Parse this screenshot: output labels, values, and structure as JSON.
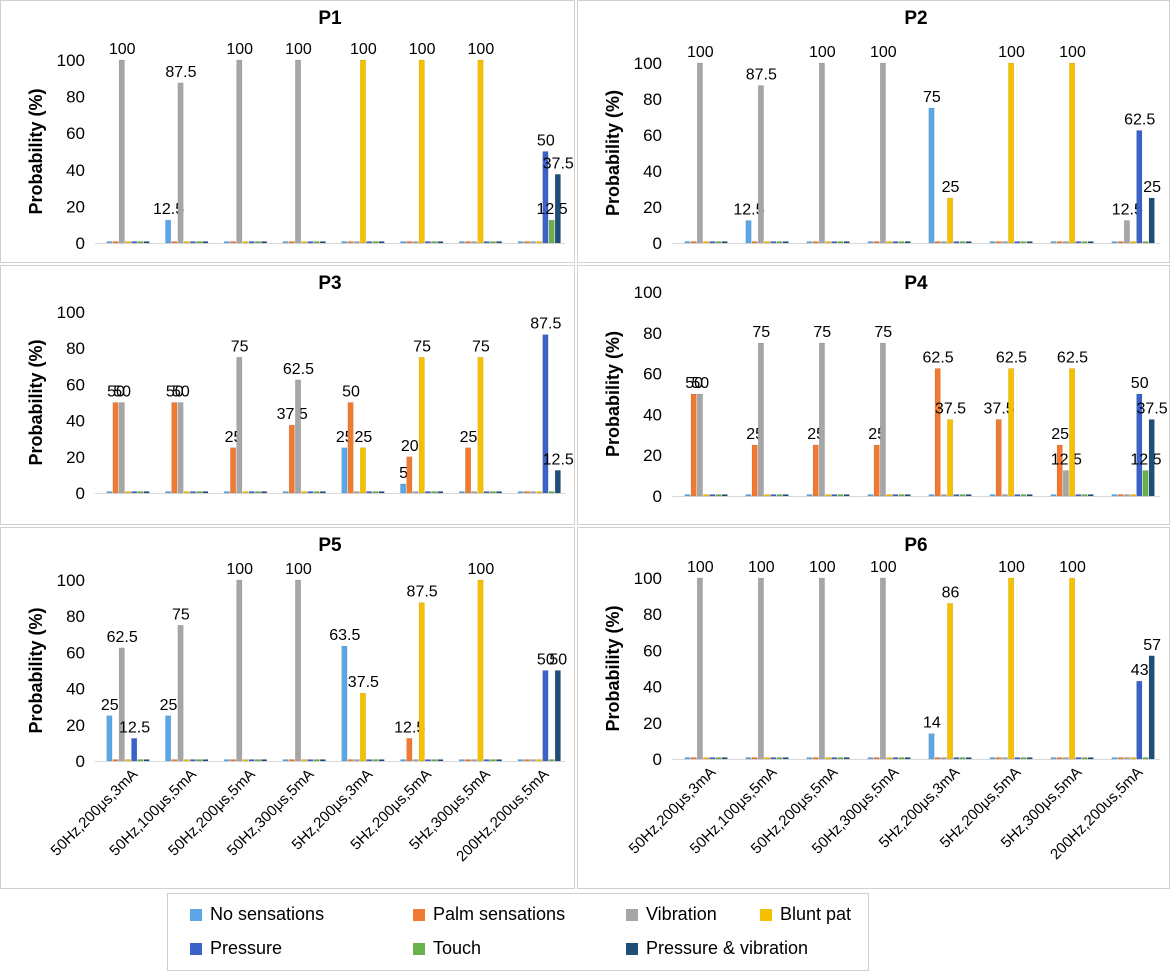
{
  "legend": [
    {
      "key": "no_sensations",
      "label": "No sensations",
      "color": "#5aa6e6"
    },
    {
      "key": "palm_sensations",
      "label": "Palm sensations",
      "color": "#f07a32"
    },
    {
      "key": "vibration",
      "label": "Vibration",
      "color": "#a6a6a6"
    },
    {
      "key": "blunt_pat",
      "label": "Blunt pat",
      "color": "#f5c000"
    },
    {
      "key": "pressure",
      "label": "Pressure",
      "color": "#3a62c8"
    },
    {
      "key": "touch",
      "label": "Touch",
      "color": "#6ab04c"
    },
    {
      "key": "pressure_vibration",
      "label": "Pressure & vibration",
      "color": "#1f4e79"
    }
  ],
  "chart_data": [
    {
      "type": "bar",
      "title": "P1",
      "ylabel": "Probability (%)",
      "ylim": [
        0,
        100
      ],
      "yticks": [
        0,
        20,
        40,
        60,
        80,
        100
      ],
      "categories": [
        "50Hz,200μs,3mA",
        "50Hz,100μs,5mA",
        "50Hz,200μs,5mA",
        "50Hz,300μs,5mA",
        "5Hz,200μs,3mA",
        "5Hz,200μs,5mA",
        "5Hz,300μs,5mA",
        "200Hz,200us,5mA"
      ],
      "series": [
        {
          "name": "No sensations",
          "values": [
            0,
            12.5,
            0,
            0,
            0,
            0,
            0,
            0
          ]
        },
        {
          "name": "Palm sensations",
          "values": [
            0,
            0,
            0,
            0,
            0,
            0,
            0,
            0
          ]
        },
        {
          "name": "Vibration",
          "values": [
            100,
            87.5,
            100,
            100,
            0,
            0,
            0,
            0
          ]
        },
        {
          "name": "Blunt pat",
          "values": [
            0,
            0,
            0,
            0,
            100,
            100,
            100,
            0
          ]
        },
        {
          "name": "Pressure",
          "values": [
            0,
            0,
            0,
            0,
            0,
            0,
            0,
            50
          ]
        },
        {
          "name": "Touch",
          "values": [
            0,
            0,
            0,
            0,
            0,
            0,
            0,
            12.5
          ]
        },
        {
          "name": "Pressure & vibration",
          "values": [
            0,
            0,
            0,
            0,
            0,
            0,
            0,
            37.5
          ]
        }
      ]
    },
    {
      "type": "bar",
      "title": "P2",
      "ylabel": "Probability (%)",
      "ylim": [
        0,
        100
      ],
      "yticks": [
        0,
        20,
        40,
        60,
        80,
        100
      ],
      "categories": [
        "50Hz,200μs,3mA",
        "50Hz,100μs,5mA",
        "50Hz,200μs,5mA",
        "50Hz,300μs,5mA",
        "5Hz,200μs,3mA",
        "5Hz,200μs,5mA",
        "5Hz,300μs,5mA",
        "200Hz,200us,5mA"
      ],
      "series": [
        {
          "name": "No sensations",
          "values": [
            0,
            12.5,
            0,
            0,
            75,
            0,
            0,
            0
          ]
        },
        {
          "name": "Palm sensations",
          "values": [
            0,
            0,
            0,
            0,
            0,
            0,
            0,
            0
          ]
        },
        {
          "name": "Vibration",
          "values": [
            100,
            87.5,
            100,
            100,
            0,
            0,
            0,
            12.5
          ]
        },
        {
          "name": "Blunt pat",
          "values": [
            0,
            0,
            0,
            0,
            25,
            100,
            100,
            0
          ]
        },
        {
          "name": "Pressure",
          "values": [
            0,
            0,
            0,
            0,
            0,
            0,
            0,
            62.5
          ]
        },
        {
          "name": "Touch",
          "values": [
            0,
            0,
            0,
            0,
            0,
            0,
            0,
            0
          ]
        },
        {
          "name": "Pressure & vibration",
          "values": [
            0,
            0,
            0,
            0,
            0,
            0,
            0,
            25
          ]
        }
      ]
    },
    {
      "type": "bar",
      "title": "P3",
      "ylabel": "Probability (%)",
      "ylim": [
        0,
        100
      ],
      "yticks": [
        0,
        20,
        40,
        60,
        80,
        100
      ],
      "categories": [
        "50Hz,200μs,3mA",
        "50Hz,100μs,5mA",
        "50Hz,200μs,5mA",
        "50Hz,300μs,5mA",
        "5Hz,200μs,3mA",
        "5Hz,200μs,5mA",
        "5Hz,300μs,5mA",
        "200Hz,200us,5mA"
      ],
      "series": [
        {
          "name": "No sensations",
          "values": [
            0,
            0,
            0,
            0,
            25,
            5,
            0,
            0
          ]
        },
        {
          "name": "Palm sensations",
          "values": [
            50,
            50,
            25,
            37.5,
            50,
            20,
            25,
            0
          ]
        },
        {
          "name": "Vibration",
          "values": [
            50,
            50,
            75,
            62.5,
            0,
            0,
            0,
            0
          ]
        },
        {
          "name": "Blunt pat",
          "values": [
            0,
            0,
            0,
            0,
            25,
            75,
            75,
            0
          ]
        },
        {
          "name": "Pressure",
          "values": [
            0,
            0,
            0,
            0,
            0,
            0,
            0,
            87.5
          ]
        },
        {
          "name": "Touch",
          "values": [
            0,
            0,
            0,
            0,
            0,
            0,
            0,
            0
          ]
        },
        {
          "name": "Pressure & vibration",
          "values": [
            0,
            0,
            0,
            0,
            0,
            0,
            0,
            12.5
          ]
        }
      ]
    },
    {
      "type": "bar",
      "title": "P4",
      "ylabel": "Probability (%)",
      "ylim": [
        0,
        100
      ],
      "yticks": [
        0,
        20,
        40,
        60,
        80,
        100
      ],
      "categories": [
        "50Hz,200μs,3mA",
        "50Hz,100μs,5mA",
        "50Hz,200μs,5mA",
        "50Hz,300μs,5mA",
        "5Hz,200μs,3mA",
        "5Hz,200μs,5mA",
        "5Hz,300μs,5mA",
        "200Hz,200us,5mA"
      ],
      "series": [
        {
          "name": "No sensations",
          "values": [
            0,
            0,
            0,
            0,
            0,
            0,
            0,
            0
          ]
        },
        {
          "name": "Palm sensations",
          "values": [
            50,
            25,
            25,
            25,
            62.5,
            37.5,
            25,
            0
          ]
        },
        {
          "name": "Vibration",
          "values": [
            50,
            75,
            75,
            75,
            0,
            0,
            12.5,
            0
          ]
        },
        {
          "name": "Blunt pat",
          "values": [
            0,
            0,
            0,
            0,
            37.5,
            62.5,
            62.5,
            0
          ]
        },
        {
          "name": "Pressure",
          "values": [
            0,
            0,
            0,
            0,
            0,
            0,
            0,
            50
          ]
        },
        {
          "name": "Touch",
          "values": [
            0,
            0,
            0,
            0,
            0,
            0,
            0,
            12.5
          ]
        },
        {
          "name": "Pressure & vibration",
          "values": [
            0,
            0,
            0,
            0,
            0,
            0,
            0,
            37.5
          ]
        }
      ]
    },
    {
      "type": "bar",
      "title": "P5",
      "ylabel": "Probability (%)",
      "ylim": [
        0,
        100
      ],
      "yticks": [
        0,
        20,
        40,
        60,
        80,
        100
      ],
      "categories": [
        "50Hz,200μs,3mA",
        "50Hz,100μs,5mA",
        "50Hz,200μs,5mA",
        "50Hz,300μs,5mA",
        "5Hz,200μs,3mA",
        "5Hz,200μs,5mA",
        "5Hz,300μs,5mA",
        "200Hz,200us,5mA"
      ],
      "series": [
        {
          "name": "No sensations",
          "values": [
            25,
            25,
            0,
            0,
            63.5,
            0,
            0,
            0
          ]
        },
        {
          "name": "Palm sensations",
          "values": [
            0,
            0,
            0,
            0,
            0,
            12.5,
            0,
            0
          ]
        },
        {
          "name": "Vibration",
          "values": [
            62.5,
            75,
            100,
            100,
            0,
            0,
            0,
            0
          ]
        },
        {
          "name": "Blunt pat",
          "values": [
            0,
            0,
            0,
            0,
            37.5,
            87.5,
            100,
            0
          ]
        },
        {
          "name": "Pressure",
          "values": [
            12.5,
            0,
            0,
            0,
            0,
            0,
            0,
            50
          ]
        },
        {
          "name": "Touch",
          "values": [
            0,
            0,
            0,
            0,
            0,
            0,
            0,
            0
          ]
        },
        {
          "name": "Pressure & vibration",
          "values": [
            0,
            0,
            0,
            0,
            0,
            0,
            0,
            50
          ]
        }
      ]
    },
    {
      "type": "bar",
      "title": "P6",
      "ylabel": "Probability (%)",
      "ylim": [
        0,
        100
      ],
      "yticks": [
        0,
        20,
        40,
        60,
        80,
        100
      ],
      "categories": [
        "50Hz,200μs,3mA",
        "50Hz,100μs,5mA",
        "50Hz,200μs,5mA",
        "50Hz,300μs,5mA",
        "5Hz,200μs,3mA",
        "5Hz,200μs,5mA",
        "5Hz,300μs,5mA",
        "200Hz,200us,5mA"
      ],
      "series": [
        {
          "name": "No sensations",
          "values": [
            0,
            0,
            0,
            0,
            14,
            0,
            0,
            0
          ]
        },
        {
          "name": "Palm sensations",
          "values": [
            0,
            0,
            0,
            0,
            0,
            0,
            0,
            0
          ]
        },
        {
          "name": "Vibration",
          "values": [
            100,
            100,
            100,
            100,
            0,
            0,
            0,
            0
          ]
        },
        {
          "name": "Blunt pat",
          "values": [
            0,
            0,
            0,
            0,
            86,
            100,
            100,
            0
          ]
        },
        {
          "name": "Pressure",
          "values": [
            0,
            0,
            0,
            0,
            0,
            0,
            0,
            43
          ]
        },
        {
          "name": "Touch",
          "values": [
            0,
            0,
            0,
            0,
            0,
            0,
            0,
            0
          ]
        },
        {
          "name": "Pressure & vibration",
          "values": [
            0,
            0,
            0,
            0,
            0,
            0,
            0,
            57
          ]
        }
      ]
    }
  ]
}
